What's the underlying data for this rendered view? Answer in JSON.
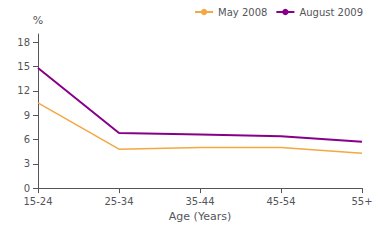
{
  "chart_data": {
    "type": "line",
    "categories": [
      "15-24",
      "25-34",
      "35-44",
      "45-54",
      "55+"
    ],
    "series": [
      {
        "name": "May 2008",
        "color": "#F4A742",
        "values": [
          10.5,
          4.8,
          5.0,
          5.0,
          4.3
        ]
      },
      {
        "name": "August 2009",
        "color": "#880088",
        "values": [
          14.8,
          6.8,
          6.6,
          6.4,
          5.7
        ]
      }
    ],
    "xlabel": "Age (Years)",
    "ylabel": "%",
    "ylim": [
      0,
      19
    ],
    "yticks": [
      0,
      3,
      6,
      9,
      12,
      15,
      18
    ],
    "grid": false,
    "legend": "upper right"
  }
}
